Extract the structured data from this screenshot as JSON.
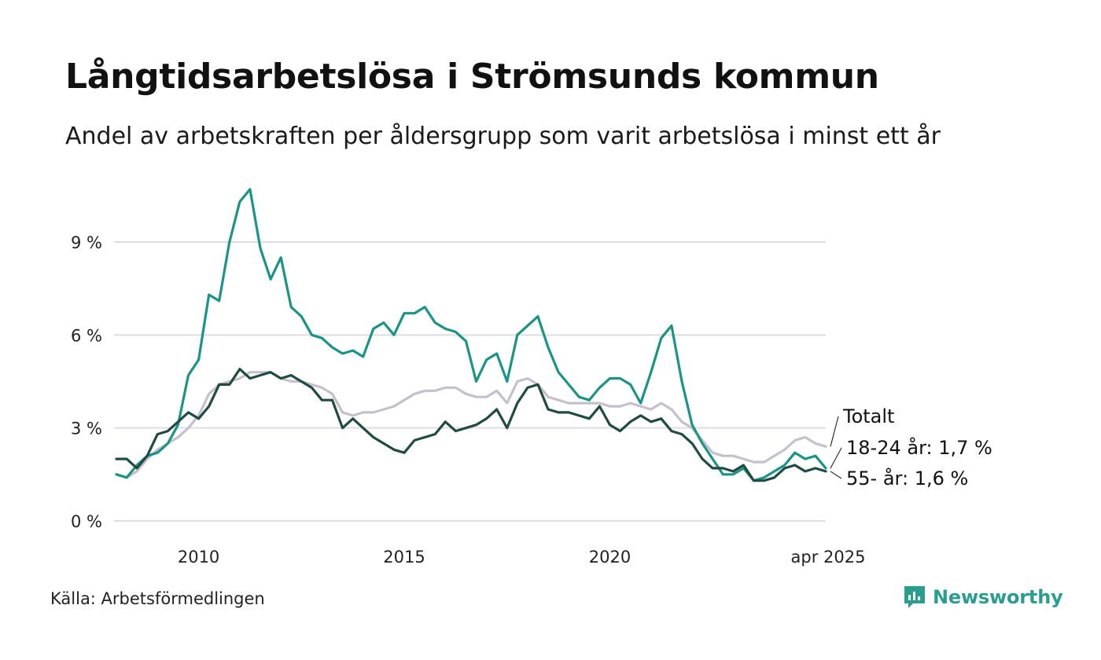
{
  "header": {
    "title": "Långtidsarbetslösa i Strömsunds kommun",
    "subtitle": "Andel av arbetskraften per åldersgrupp som varit arbetslösa i minst ett år"
  },
  "footer": {
    "source": "Källa: Arbetsförmedlingen",
    "brand": "Newsworthy"
  },
  "chart_data": {
    "type": "line",
    "ylim": [
      0,
      10.8
    ],
    "xlim": [
      2008.0,
      2025.25
    ],
    "yticks": [
      {
        "value": 0,
        "label": "0 %"
      },
      {
        "value": 3,
        "label": "3 %"
      },
      {
        "value": 6,
        "label": "6 %"
      },
      {
        "value": 9,
        "label": "9 %"
      }
    ],
    "xticks": [
      {
        "value": 2010,
        "label": "2010"
      },
      {
        "value": 2015,
        "label": "2015"
      },
      {
        "value": 2020,
        "label": "2020"
      },
      {
        "value": 2025.25,
        "label": "apr 2025"
      }
    ],
    "grid": true,
    "legend": "end-labels-right",
    "series": [
      {
        "name": "Totalt",
        "label": "Totalt",
        "color": "#c5c0cc",
        "points": [
          [
            2008.0,
            1.5
          ],
          [
            2008.25,
            1.4
          ],
          [
            2008.5,
            1.6
          ],
          [
            2008.75,
            2.0
          ],
          [
            2009.0,
            2.3
          ],
          [
            2009.25,
            2.5
          ],
          [
            2009.5,
            2.7
          ],
          [
            2009.75,
            3.0
          ],
          [
            2010.0,
            3.4
          ],
          [
            2010.25,
            4.1
          ],
          [
            2010.5,
            4.4
          ],
          [
            2010.75,
            4.5
          ],
          [
            2011.0,
            4.6
          ],
          [
            2011.25,
            4.8
          ],
          [
            2011.5,
            4.8
          ],
          [
            2011.75,
            4.8
          ],
          [
            2012.0,
            4.6
          ],
          [
            2012.25,
            4.5
          ],
          [
            2012.5,
            4.5
          ],
          [
            2012.75,
            4.4
          ],
          [
            2013.0,
            4.3
          ],
          [
            2013.25,
            4.1
          ],
          [
            2013.5,
            3.5
          ],
          [
            2013.75,
            3.4
          ],
          [
            2014.0,
            3.5
          ],
          [
            2014.25,
            3.5
          ],
          [
            2014.5,
            3.6
          ],
          [
            2014.75,
            3.7
          ],
          [
            2015.0,
            3.9
          ],
          [
            2015.25,
            4.1
          ],
          [
            2015.5,
            4.2
          ],
          [
            2015.75,
            4.2
          ],
          [
            2016.0,
            4.3
          ],
          [
            2016.25,
            4.3
          ],
          [
            2016.5,
            4.1
          ],
          [
            2016.75,
            4.0
          ],
          [
            2017.0,
            4.0
          ],
          [
            2017.25,
            4.2
          ],
          [
            2017.5,
            3.8
          ],
          [
            2017.75,
            4.5
          ],
          [
            2018.0,
            4.6
          ],
          [
            2018.25,
            4.4
          ],
          [
            2018.5,
            4.0
          ],
          [
            2018.75,
            3.9
          ],
          [
            2019.0,
            3.8
          ],
          [
            2019.25,
            3.8
          ],
          [
            2019.5,
            3.8
          ],
          [
            2019.75,
            3.8
          ],
          [
            2020.0,
            3.7
          ],
          [
            2020.25,
            3.7
          ],
          [
            2020.5,
            3.8
          ],
          [
            2020.75,
            3.7
          ],
          [
            2021.0,
            3.6
          ],
          [
            2021.25,
            3.8
          ],
          [
            2021.5,
            3.6
          ],
          [
            2021.75,
            3.2
          ],
          [
            2022.0,
            3.0
          ],
          [
            2022.25,
            2.6
          ],
          [
            2022.5,
            2.2
          ],
          [
            2022.75,
            2.1
          ],
          [
            2023.0,
            2.1
          ],
          [
            2023.25,
            2.0
          ],
          [
            2023.5,
            1.9
          ],
          [
            2023.75,
            1.9
          ],
          [
            2024.0,
            2.1
          ],
          [
            2024.25,
            2.3
          ],
          [
            2024.5,
            2.6
          ],
          [
            2024.75,
            2.7
          ],
          [
            2025.0,
            2.5
          ],
          [
            2025.25,
            2.4
          ]
        ]
      },
      {
        "name": "18-24 år",
        "label": "18-24 år: 1,7 %",
        "color": "#1a9484",
        "points": [
          [
            2008.0,
            1.5
          ],
          [
            2008.25,
            1.4
          ],
          [
            2008.5,
            1.8
          ],
          [
            2008.75,
            2.1
          ],
          [
            2009.0,
            2.2
          ],
          [
            2009.25,
            2.5
          ],
          [
            2009.5,
            3.1
          ],
          [
            2009.75,
            4.7
          ],
          [
            2010.0,
            5.2
          ],
          [
            2010.25,
            7.3
          ],
          [
            2010.5,
            7.1
          ],
          [
            2010.75,
            9.0
          ],
          [
            2011.0,
            10.3
          ],
          [
            2011.25,
            10.7
          ],
          [
            2011.5,
            8.8
          ],
          [
            2011.75,
            7.8
          ],
          [
            2012.0,
            8.5
          ],
          [
            2012.25,
            6.9
          ],
          [
            2012.5,
            6.6
          ],
          [
            2012.75,
            6.0
          ],
          [
            2013.0,
            5.9
          ],
          [
            2013.25,
            5.6
          ],
          [
            2013.5,
            5.4
          ],
          [
            2013.75,
            5.5
          ],
          [
            2014.0,
            5.3
          ],
          [
            2014.25,
            6.2
          ],
          [
            2014.5,
            6.4
          ],
          [
            2014.75,
            6.0
          ],
          [
            2015.0,
            6.7
          ],
          [
            2015.25,
            6.7
          ],
          [
            2015.5,
            6.9
          ],
          [
            2015.75,
            6.4
          ],
          [
            2016.0,
            6.2
          ],
          [
            2016.25,
            6.1
          ],
          [
            2016.5,
            5.8
          ],
          [
            2016.75,
            4.5
          ],
          [
            2017.0,
            5.2
          ],
          [
            2017.25,
            5.4
          ],
          [
            2017.5,
            4.5
          ],
          [
            2017.75,
            6.0
          ],
          [
            2018.0,
            6.3
          ],
          [
            2018.25,
            6.6
          ],
          [
            2018.5,
            5.6
          ],
          [
            2018.75,
            4.8
          ],
          [
            2019.0,
            4.4
          ],
          [
            2019.25,
            4.0
          ],
          [
            2019.5,
            3.9
          ],
          [
            2019.75,
            4.3
          ],
          [
            2020.0,
            4.6
          ],
          [
            2020.25,
            4.6
          ],
          [
            2020.5,
            4.4
          ],
          [
            2020.75,
            3.8
          ],
          [
            2021.0,
            4.8
          ],
          [
            2021.25,
            5.9
          ],
          [
            2021.5,
            6.3
          ],
          [
            2021.75,
            4.5
          ],
          [
            2022.0,
            3.1
          ],
          [
            2022.25,
            2.5
          ],
          [
            2022.5,
            2.0
          ],
          [
            2022.75,
            1.5
          ],
          [
            2023.0,
            1.5
          ],
          [
            2023.25,
            1.7
          ],
          [
            2023.5,
            1.3
          ],
          [
            2023.75,
            1.4
          ],
          [
            2024.0,
            1.6
          ],
          [
            2024.25,
            1.8
          ],
          [
            2024.5,
            2.2
          ],
          [
            2024.75,
            2.0
          ],
          [
            2025.0,
            2.1
          ],
          [
            2025.25,
            1.7
          ]
        ]
      },
      {
        "name": "55- år",
        "label": "55- år: 1,6 %",
        "color": "#1f4b44",
        "points": [
          [
            2008.0,
            2.0
          ],
          [
            2008.25,
            2.0
          ],
          [
            2008.5,
            1.7
          ],
          [
            2008.75,
            2.1
          ],
          [
            2009.0,
            2.8
          ],
          [
            2009.25,
            2.9
          ],
          [
            2009.5,
            3.2
          ],
          [
            2009.75,
            3.5
          ],
          [
            2010.0,
            3.3
          ],
          [
            2010.25,
            3.7
          ],
          [
            2010.5,
            4.4
          ],
          [
            2010.75,
            4.4
          ],
          [
            2011.0,
            4.9
          ],
          [
            2011.25,
            4.6
          ],
          [
            2011.5,
            4.7
          ],
          [
            2011.75,
            4.8
          ],
          [
            2012.0,
            4.6
          ],
          [
            2012.25,
            4.7
          ],
          [
            2012.5,
            4.5
          ],
          [
            2012.75,
            4.3
          ],
          [
            2013.0,
            3.9
          ],
          [
            2013.25,
            3.9
          ],
          [
            2013.5,
            3.0
          ],
          [
            2013.75,
            3.3
          ],
          [
            2014.0,
            3.0
          ],
          [
            2014.25,
            2.7
          ],
          [
            2014.5,
            2.5
          ],
          [
            2014.75,
            2.3
          ],
          [
            2015.0,
            2.2
          ],
          [
            2015.25,
            2.6
          ],
          [
            2015.5,
            2.7
          ],
          [
            2015.75,
            2.8
          ],
          [
            2016.0,
            3.2
          ],
          [
            2016.25,
            2.9
          ],
          [
            2016.5,
            3.0
          ],
          [
            2016.75,
            3.1
          ],
          [
            2017.0,
            3.3
          ],
          [
            2017.25,
            3.6
          ],
          [
            2017.5,
            3.0
          ],
          [
            2017.75,
            3.8
          ],
          [
            2018.0,
            4.3
          ],
          [
            2018.25,
            4.4
          ],
          [
            2018.5,
            3.6
          ],
          [
            2018.75,
            3.5
          ],
          [
            2019.0,
            3.5
          ],
          [
            2019.25,
            3.4
          ],
          [
            2019.5,
            3.3
          ],
          [
            2019.75,
            3.7
          ],
          [
            2020.0,
            3.1
          ],
          [
            2020.25,
            2.9
          ],
          [
            2020.5,
            3.2
          ],
          [
            2020.75,
            3.4
          ],
          [
            2021.0,
            3.2
          ],
          [
            2021.25,
            3.3
          ],
          [
            2021.5,
            2.9
          ],
          [
            2021.75,
            2.8
          ],
          [
            2022.0,
            2.5
          ],
          [
            2022.25,
            2.0
          ],
          [
            2022.5,
            1.7
          ],
          [
            2022.75,
            1.7
          ],
          [
            2023.0,
            1.6
          ],
          [
            2023.25,
            1.8
          ],
          [
            2023.5,
            1.3
          ],
          [
            2023.75,
            1.3
          ],
          [
            2024.0,
            1.4
          ],
          [
            2024.25,
            1.7
          ],
          [
            2024.5,
            1.8
          ],
          [
            2024.75,
            1.6
          ],
          [
            2025.0,
            1.7
          ],
          [
            2025.25,
            1.6
          ]
        ]
      }
    ]
  }
}
